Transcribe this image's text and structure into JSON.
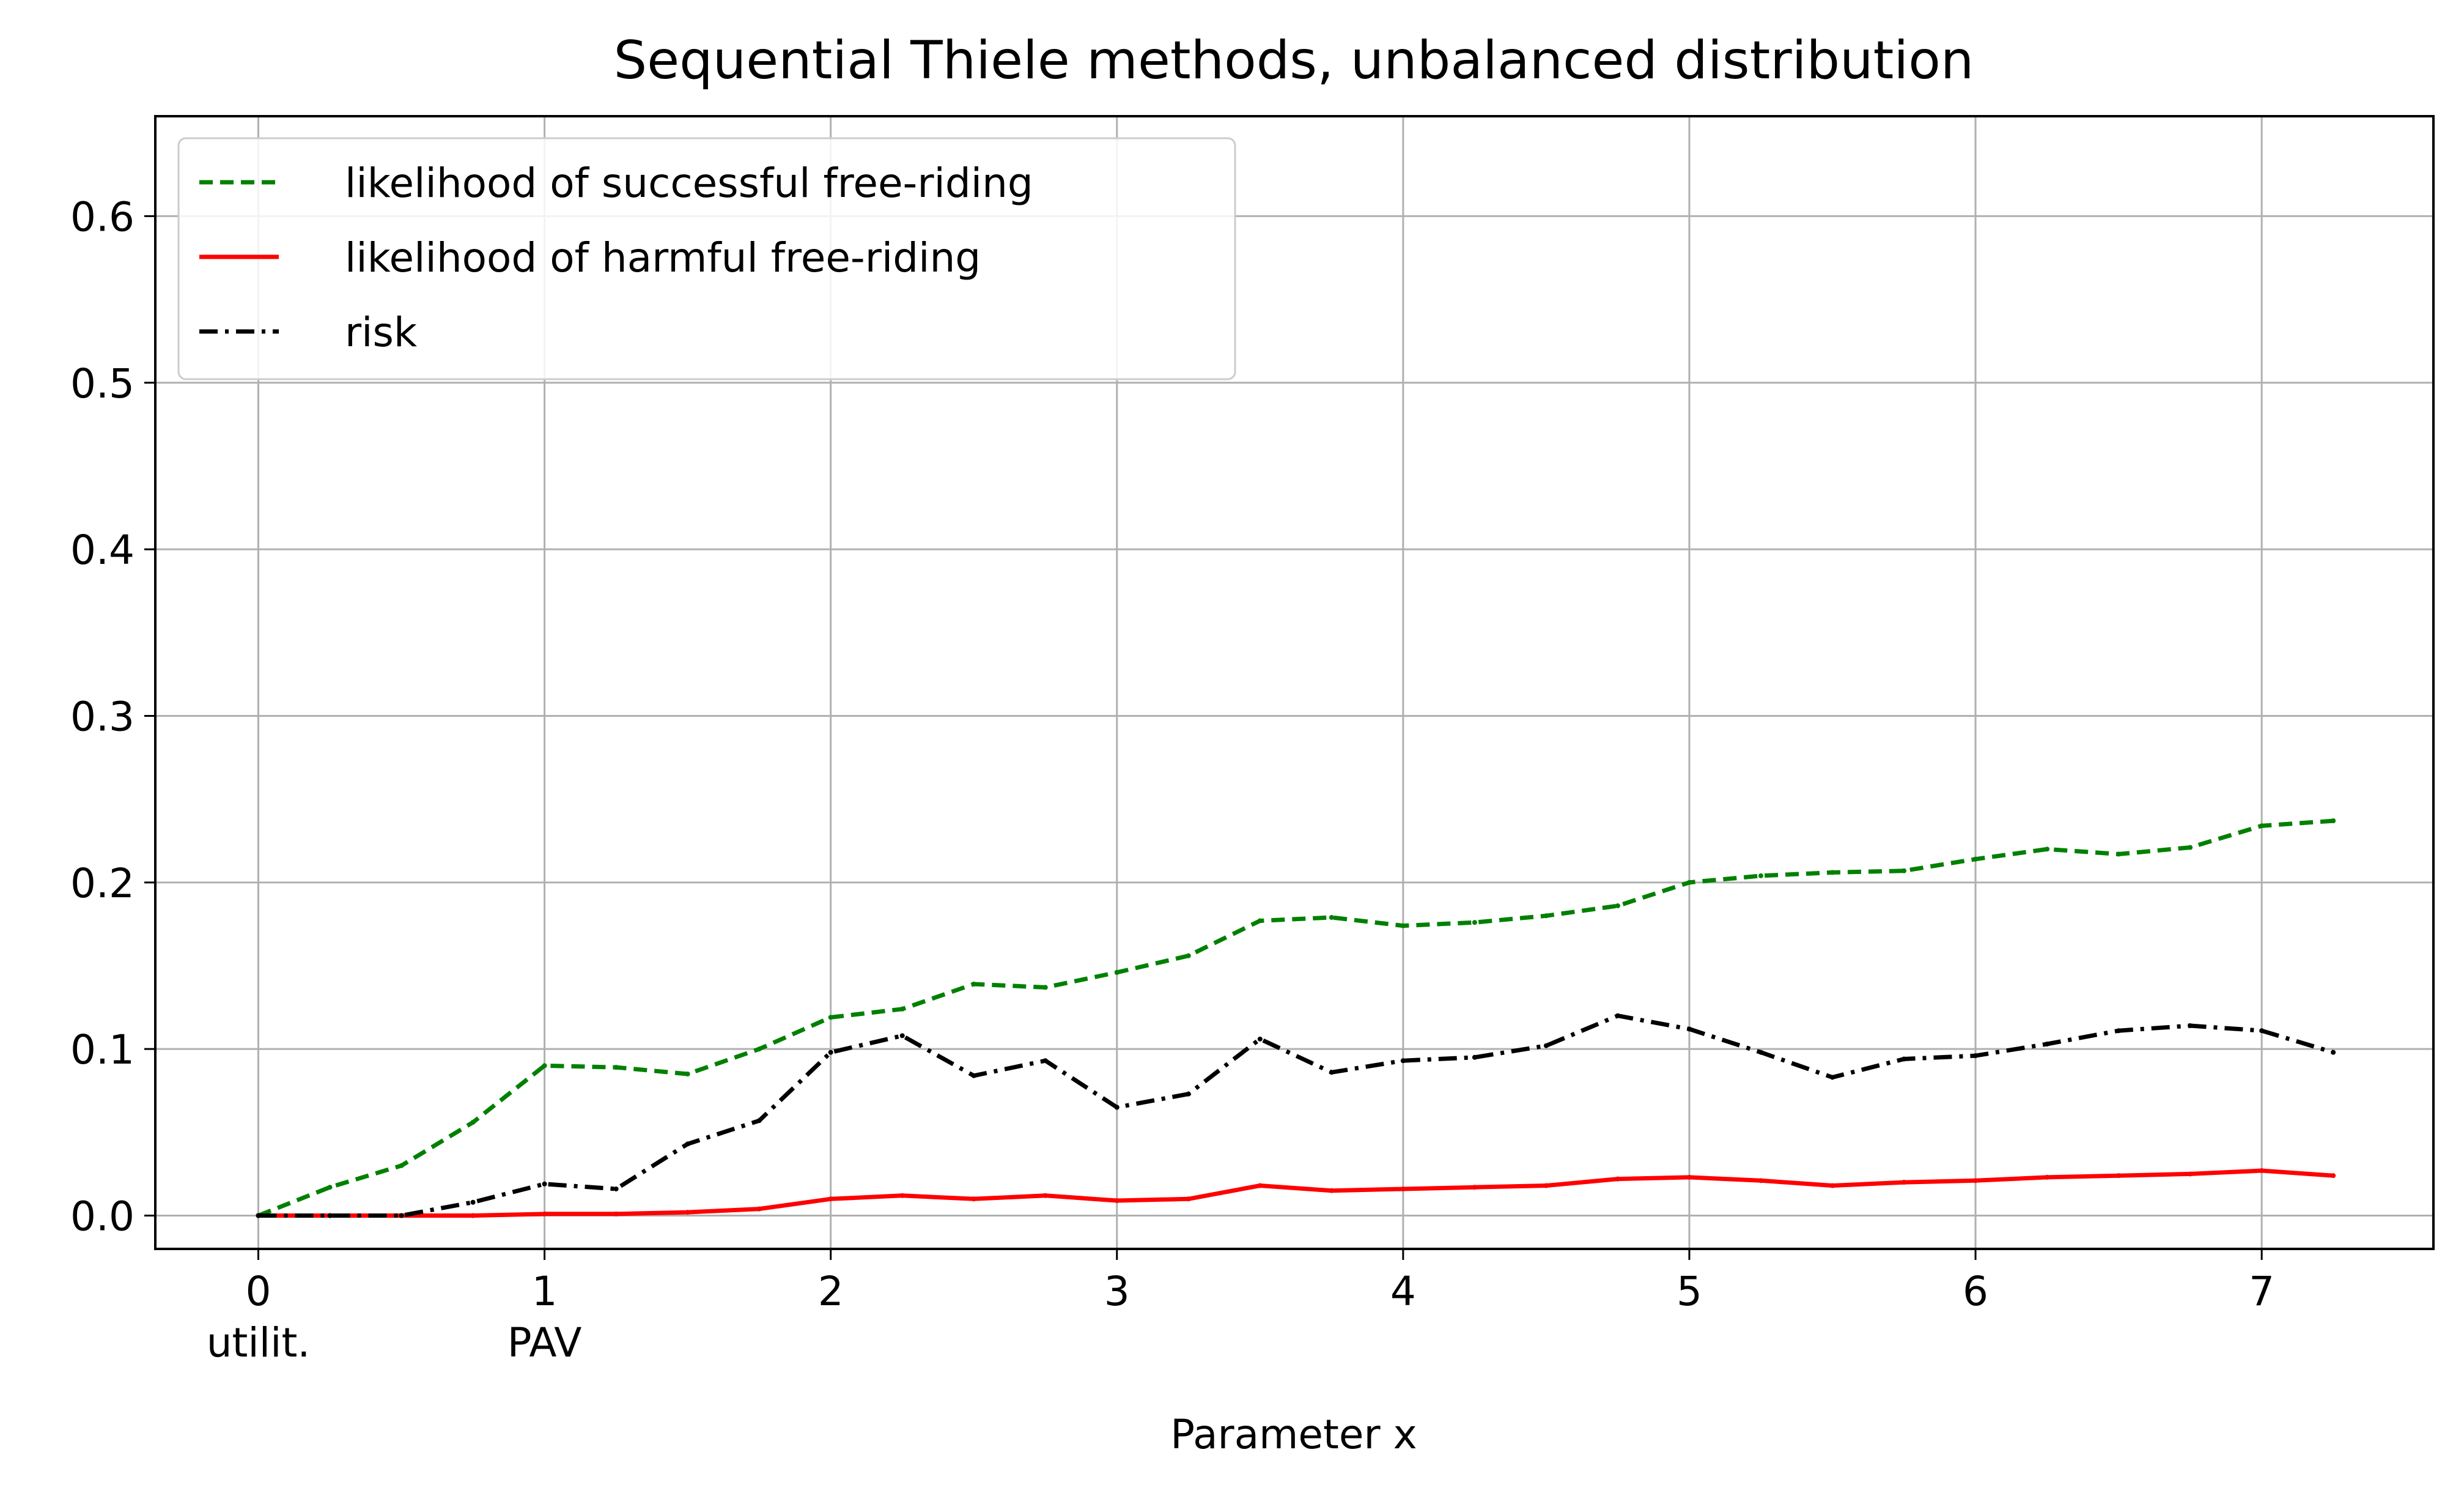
{
  "chart_data": {
    "type": "line",
    "title": "Sequential Thiele methods, unbalanced distribution",
    "xlabel": "Parameter x",
    "ylabel": "",
    "xlim": [
      -0.36,
      7.6
    ],
    "ylim": [
      -0.02,
      0.66
    ],
    "grid": true,
    "legend_position": "upper-left",
    "x_ticks": [
      0,
      1,
      2,
      3,
      4,
      5,
      6,
      7
    ],
    "x_tick_labels": [
      "0",
      "1",
      "2",
      "3",
      "4",
      "5",
      "6",
      "7"
    ],
    "x_tick_sublabels": [
      "utilit.",
      "PAV",
      "",
      "",
      "",
      "",
      "",
      ""
    ],
    "y_ticks": [
      0.0,
      0.1,
      0.2,
      0.3,
      0.4,
      0.5,
      0.6
    ],
    "y_tick_labels": [
      "0.0",
      "0.1",
      "0.2",
      "0.3",
      "0.4",
      "0.5",
      "0.6"
    ],
    "x": [
      0,
      0.25,
      0.5,
      0.75,
      1,
      1.25,
      1.5,
      1.75,
      2,
      2.25,
      2.5,
      2.75,
      3,
      3.25,
      3.5,
      3.75,
      4,
      4.25,
      4.5,
      4.75,
      5,
      5.25,
      5.5,
      5.75,
      6,
      6.25,
      6.5,
      6.75,
      7,
      7.25
    ],
    "series": [
      {
        "name": "likelihood of successful free-riding",
        "color": "#008000",
        "style": "dashed",
        "values": [
          0.0,
          0.017,
          0.03,
          0.056,
          0.09,
          0.089,
          0.085,
          0.1,
          0.119,
          0.124,
          0.139,
          0.137,
          0.146,
          0.156,
          0.177,
          0.179,
          0.174,
          0.176,
          0.18,
          0.186,
          0.2,
          0.204,
          0.206,
          0.207,
          0.214,
          0.22,
          0.217,
          0.221,
          0.234,
          0.237
        ]
      },
      {
        "name": "likelihood of harmful free-riding",
        "color": "#ff0000",
        "style": "solid",
        "values": [
          0.0,
          0.0,
          0.0,
          0.0,
          0.001,
          0.001,
          0.002,
          0.004,
          0.01,
          0.012,
          0.01,
          0.012,
          0.009,
          0.01,
          0.018,
          0.015,
          0.016,
          0.017,
          0.018,
          0.022,
          0.023,
          0.021,
          0.018,
          0.02,
          0.021,
          0.023,
          0.024,
          0.025,
          0.027,
          0.024
        ]
      },
      {
        "name": "risk",
        "color": "#000000",
        "style": "dashdot",
        "values": [
          0.0,
          0.0,
          0.0,
          0.008,
          0.019,
          0.016,
          0.043,
          0.057,
          0.098,
          0.108,
          0.084,
          0.093,
          0.065,
          0.073,
          0.106,
          0.086,
          0.093,
          0.095,
          0.102,
          0.12,
          0.112,
          0.098,
          0.083,
          0.094,
          0.096,
          0.103,
          0.111,
          0.114,
          0.111,
          0.098
        ]
      }
    ]
  }
}
